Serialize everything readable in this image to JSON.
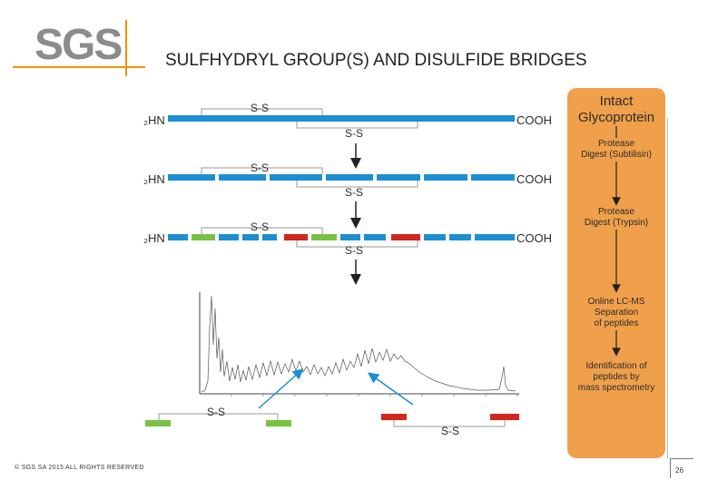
{
  "header": {
    "logo_text": "SGS",
    "title": "SULFHYDRYL GROUP(S) AND DISULFIDE BRIDGES"
  },
  "footer": {
    "copyright": "© SGS SA 2015 ALL RIGHTS RESERVED",
    "page_number": "26"
  },
  "diagram": {
    "n_terminus": "₂HN",
    "c_terminus": "COOH",
    "bridge_label": "S-S"
  },
  "flow": {
    "step1_line1": "Intact",
    "step1_line2": "Glycoprotein",
    "step2_line1": "Protease",
    "step2_line2": "Digest (Subtilisin)",
    "step3_line1": "Protease",
    "step3_line2": "Digest (Trypsin)",
    "step4_line1": "Online LC-MS",
    "step4_line2": "Separation",
    "step4_line3": "of peptides",
    "step5_line1": "Identification of",
    "step5_line2": "peptides by",
    "step5_line3": "mass spectrometry"
  },
  "colors": {
    "chain_blue": "#1b8fd2",
    "peptide_green": "#7ac142",
    "peptide_red": "#d3261e",
    "panel_orange": "#f0a04b",
    "logo_accent": "#f39200"
  }
}
